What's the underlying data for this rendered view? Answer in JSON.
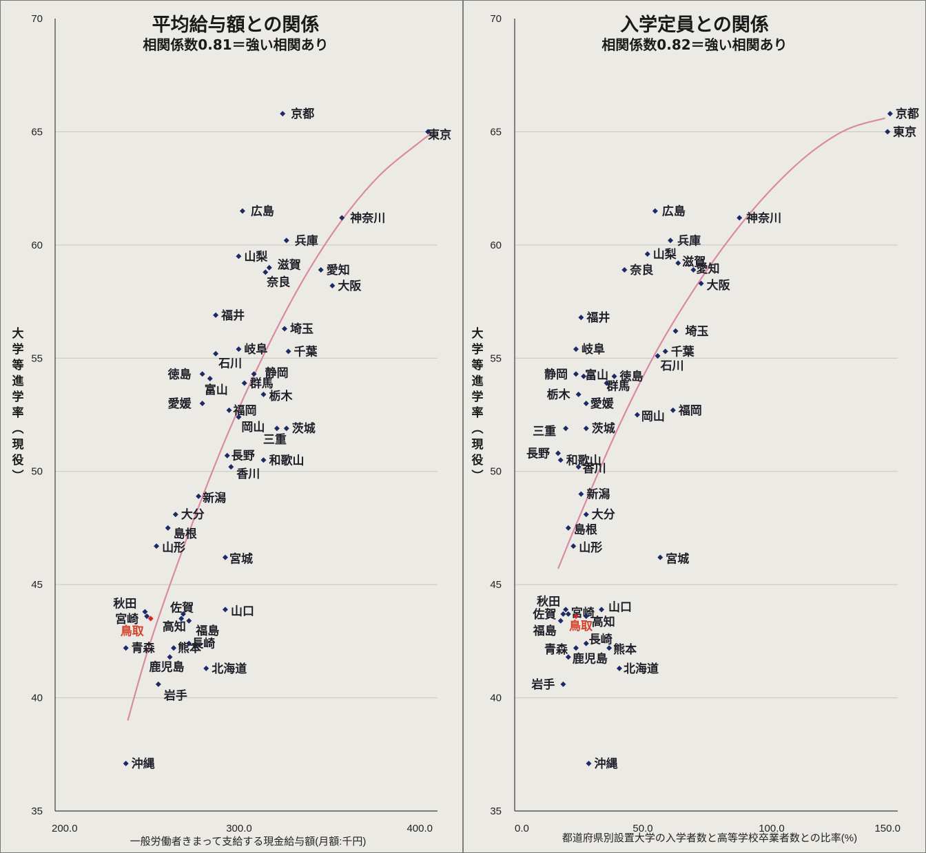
{
  "chart_data": [
    {
      "type": "scatter",
      "title": "平均給与額との関係",
      "subtitle": "相関係数0.81＝強い相関あり",
      "ylabel": "大学等進学率（現役）",
      "xlabel": "一般労働者きまって支給する現金給与額(月額:千円)",
      "xlim": [
        200,
        400
      ],
      "ylim": [
        35,
        70
      ],
      "xticks": [
        "200.0",
        "300.0",
        "400.0"
      ],
      "yticks": [
        "35",
        "40",
        "45",
        "50",
        "55",
        "60",
        "65",
        "70"
      ],
      "grid": true,
      "trend": [
        [
          238,
          39.0
        ],
        [
          250,
          42.5
        ],
        [
          270,
          47.3
        ],
        [
          290,
          51.6
        ],
        [
          310,
          55.3
        ],
        [
          330,
          58.5
        ],
        [
          350,
          61.1
        ],
        [
          370,
          63.1
        ],
        [
          390,
          64.5
        ],
        [
          398,
          65.0
        ]
      ],
      "points": [
        {
          "label": "京都",
          "x": 319,
          "y": 65.8
        },
        {
          "label": "東京",
          "x": 395,
          "y": 65.0
        },
        {
          "label": "広島",
          "x": 298,
          "y": 61.5
        },
        {
          "label": "神奈川",
          "x": 350,
          "y": 61.2
        },
        {
          "label": "兵庫",
          "x": 321,
          "y": 60.2
        },
        {
          "label": "山梨",
          "x": 296,
          "y": 59.5
        },
        {
          "label": "滋賀",
          "x": 312,
          "y": 59.0
        },
        {
          "label": "奈良",
          "x": 310,
          "y": 58.8
        },
        {
          "label": "愛知",
          "x": 339,
          "y": 58.9
        },
        {
          "label": "大阪",
          "x": 345,
          "y": 58.2
        },
        {
          "label": "福井",
          "x": 284,
          "y": 56.9
        },
        {
          "label": "埼玉",
          "x": 320,
          "y": 56.3
        },
        {
          "label": "岐阜",
          "x": 296,
          "y": 55.4
        },
        {
          "label": "千葉",
          "x": 322,
          "y": 55.3
        },
        {
          "label": "石川",
          "x": 284,
          "y": 55.2
        },
        {
          "label": "徳島",
          "x": 277,
          "y": 54.3
        },
        {
          "label": "静岡",
          "x": 304,
          "y": 54.3
        },
        {
          "label": "富山",
          "x": 281,
          "y": 54.1
        },
        {
          "label": "群馬",
          "x": 299,
          "y": 53.9
        },
        {
          "label": "栃木",
          "x": 309,
          "y": 53.4
        },
        {
          "label": "愛媛",
          "x": 277,
          "y": 53.0
        },
        {
          "label": "福岡",
          "x": 291,
          "y": 52.7
        },
        {
          "label": "岡山",
          "x": 296,
          "y": 52.4
        },
        {
          "label": "茨城",
          "x": 321,
          "y": 51.9
        },
        {
          "label": "三重",
          "x": 316,
          "y": 51.9
        },
        {
          "label": "長野",
          "x": 290,
          "y": 50.7
        },
        {
          "label": "和歌山",
          "x": 309,
          "y": 50.5
        },
        {
          "label": "香川",
          "x": 292,
          "y": 50.2
        },
        {
          "label": "新潟",
          "x": 275,
          "y": 48.9
        },
        {
          "label": "大分",
          "x": 263,
          "y": 48.1
        },
        {
          "label": "島根",
          "x": 259,
          "y": 47.5
        },
        {
          "label": "山形",
          "x": 253,
          "y": 46.7
        },
        {
          "label": "宮城",
          "x": 289,
          "y": 46.2
        },
        {
          "label": "秋田",
          "x": 247,
          "y": 43.8
        },
        {
          "label": "宮崎",
          "x": 248,
          "y": 43.6
        },
        {
          "label": "鳥取",
          "x": 250,
          "y": 43.5,
          "highlight": true
        },
        {
          "label": "佐賀",
          "x": 266,
          "y": 43.5
        },
        {
          "label": "山口",
          "x": 289,
          "y": 43.9
        },
        {
          "label": "高知",
          "x": 267,
          "y": 43.7
        },
        {
          "label": "福島",
          "x": 270,
          "y": 43.4
        },
        {
          "label": "長崎",
          "x": 270,
          "y": 42.4
        },
        {
          "label": "青森",
          "x": 237,
          "y": 42.2
        },
        {
          "label": "熊本",
          "x": 262,
          "y": 42.2
        },
        {
          "label": "鹿児島",
          "x": 260,
          "y": 41.8
        },
        {
          "label": "北海道",
          "x": 279,
          "y": 41.3
        },
        {
          "label": "岩手",
          "x": 254,
          "y": 40.6
        },
        {
          "label": "沖縄",
          "x": 237,
          "y": 37.1
        }
      ]
    },
    {
      "type": "scatter",
      "title": "入学定員との関係",
      "subtitle": "相関係数0.82＝強い相関あり",
      "ylabel": "大学等進学率（現役）",
      "xlabel": "都道府県別設置大学の入学者数と高等学校卒業者数との比率(%)",
      "xlim": [
        0,
        150
      ],
      "ylim": [
        35,
        70
      ],
      "xticks": [
        "0.0",
        "50.0",
        "100.0",
        "150.0"
      ],
      "yticks": [
        "35",
        "40",
        "45",
        "50",
        "55",
        "60",
        "65",
        "70"
      ],
      "grid": true,
      "trend": [
        [
          17,
          45.7
        ],
        [
          25,
          47.9
        ],
        [
          40,
          51.8
        ],
        [
          55,
          55.2
        ],
        [
          70,
          58.0
        ],
        [
          85,
          60.4
        ],
        [
          100,
          62.4
        ],
        [
          115,
          64.0
        ],
        [
          130,
          65.1
        ],
        [
          145,
          65.6
        ]
      ],
      "points": [
        {
          "label": "京都",
          "x": 147,
          "y": 65.8
        },
        {
          "label": "東京",
          "x": 146,
          "y": 65.0
        },
        {
          "label": "広島",
          "x": 55,
          "y": 61.5
        },
        {
          "label": "神奈川",
          "x": 88,
          "y": 61.2
        },
        {
          "label": "兵庫",
          "x": 61,
          "y": 60.2
        },
        {
          "label": "山梨",
          "x": 52,
          "y": 59.6
        },
        {
          "label": "滋賀",
          "x": 64,
          "y": 59.2
        },
        {
          "label": "愛知",
          "x": 70,
          "y": 58.9
        },
        {
          "label": "奈良",
          "x": 43,
          "y": 58.9
        },
        {
          "label": "大阪",
          "x": 73,
          "y": 58.3
        },
        {
          "label": "福井",
          "x": 26,
          "y": 56.8
        },
        {
          "label": "埼玉",
          "x": 63,
          "y": 56.2
        },
        {
          "label": "岐阜",
          "x": 24,
          "y": 55.4
        },
        {
          "label": "千葉",
          "x": 59,
          "y": 55.3
        },
        {
          "label": "石川",
          "x": 56,
          "y": 55.1
        },
        {
          "label": "静岡",
          "x": 24,
          "y": 54.3
        },
        {
          "label": "富山",
          "x": 27,
          "y": 54.2
        },
        {
          "label": "徳島",
          "x": 39,
          "y": 54.2
        },
        {
          "label": "群馬",
          "x": 36,
          "y": 53.9
        },
        {
          "label": "栃木",
          "x": 25,
          "y": 53.4
        },
        {
          "label": "愛媛",
          "x": 28,
          "y": 53.0
        },
        {
          "label": "福岡",
          "x": 62,
          "y": 52.7
        },
        {
          "label": "岡山",
          "x": 48,
          "y": 52.5
        },
        {
          "label": "三重",
          "x": 20,
          "y": 51.9
        },
        {
          "label": "茨城",
          "x": 28,
          "y": 51.9
        },
        {
          "label": "長野",
          "x": 17,
          "y": 50.8
        },
        {
          "label": "和歌山",
          "x": 18,
          "y": 50.5
        },
        {
          "label": "香川",
          "x": 25,
          "y": 50.2
        },
        {
          "label": "新潟",
          "x": 26,
          "y": 49.0
        },
        {
          "label": "大分",
          "x": 28,
          "y": 48.1
        },
        {
          "label": "島根",
          "x": 21,
          "y": 47.5
        },
        {
          "label": "山形",
          "x": 23,
          "y": 46.7
        },
        {
          "label": "宮城",
          "x": 57,
          "y": 46.2
        },
        {
          "label": "秋田",
          "x": 20,
          "y": 43.9
        },
        {
          "label": "佐賀",
          "x": 19,
          "y": 43.7
        },
        {
          "label": "宮崎",
          "x": 21,
          "y": 43.7
        },
        {
          "label": "山口",
          "x": 34,
          "y": 43.9
        },
        {
          "label": "高知",
          "x": 28,
          "y": 43.6
        },
        {
          "label": "鳥取",
          "x": 24,
          "y": 43.6,
          "highlight": true
        },
        {
          "label": "福島",
          "x": 18,
          "y": 43.4
        },
        {
          "label": "長崎",
          "x": 28,
          "y": 42.4
        },
        {
          "label": "青森",
          "x": 24,
          "y": 42.2
        },
        {
          "label": "熊本",
          "x": 37,
          "y": 42.2
        },
        {
          "label": "鹿児島",
          "x": 21,
          "y": 41.8
        },
        {
          "label": "北海道",
          "x": 41,
          "y": 41.3
        },
        {
          "label": "岩手",
          "x": 19,
          "y": 40.6
        },
        {
          "label": "沖縄",
          "x": 29,
          "y": 37.1
        }
      ]
    }
  ],
  "colors": {
    "point": "#1c2a66",
    "highlight_point": "#d4262b",
    "highlight_label": "#d4402a",
    "trend": "#d98aa1",
    "grid": "#c8c6c0",
    "axis": "#3a3a3a"
  }
}
